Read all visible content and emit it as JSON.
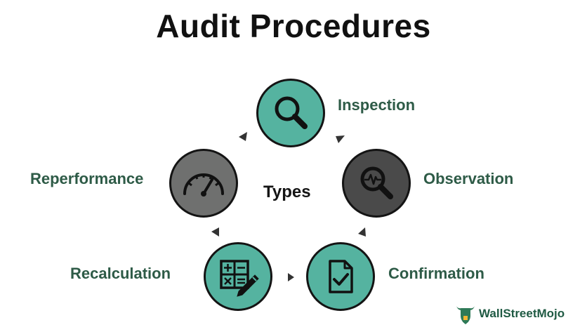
{
  "title": "Audit Procedures",
  "center_label": "Types",
  "colors": {
    "teal": "#55b3a0",
    "gray": "#6f706f",
    "dark": "#4a4a4a",
    "label": "#2e5b47"
  },
  "nodes": [
    {
      "label": "Inspection",
      "icon": "magnifier-icon"
    },
    {
      "label": "Observation",
      "icon": "magnifier-pulse-icon"
    },
    {
      "label": "Confirmation",
      "icon": "document-check-icon"
    },
    {
      "label": "Recalculation",
      "icon": "calculator-pencil-icon"
    },
    {
      "label": "Reperformance",
      "icon": "speedometer-icon"
    }
  ],
  "brand": {
    "name": "WallStreetMojo",
    "icon": "bull-logo-icon"
  }
}
